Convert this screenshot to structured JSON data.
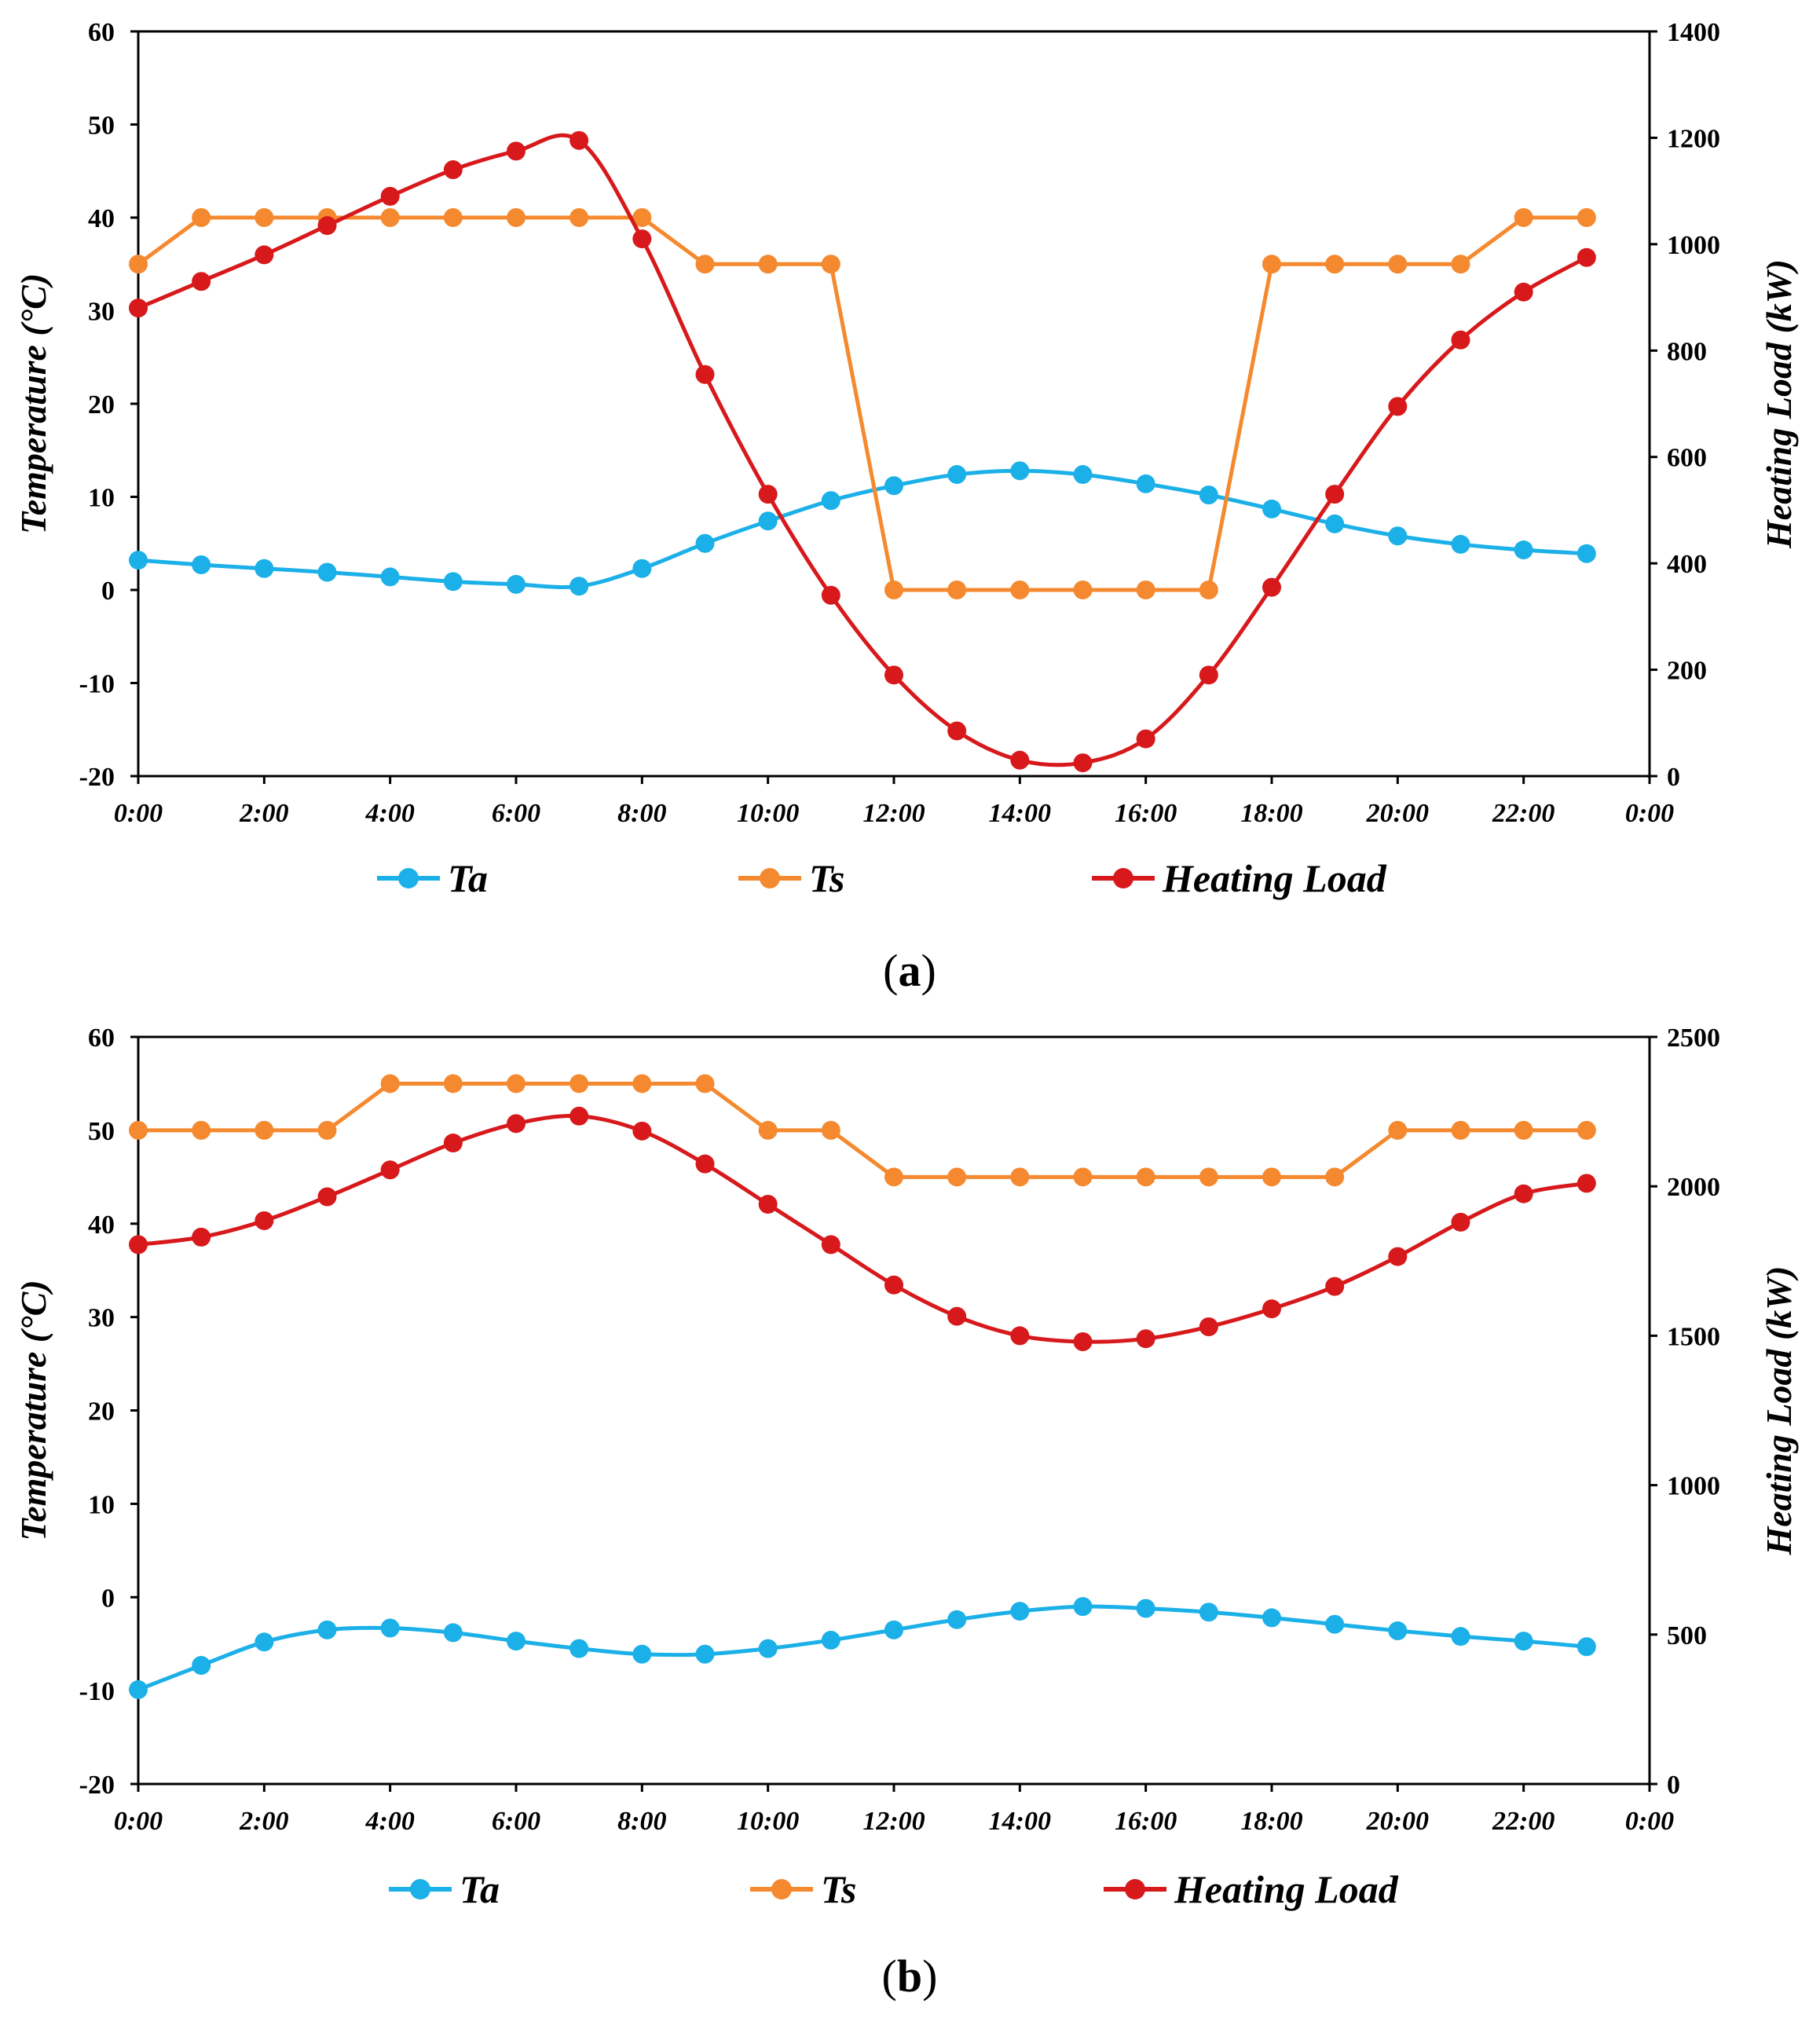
{
  "chart_data": [
    {
      "type": "line",
      "panel": "a",
      "caption_letter": "a",
      "x_tick_labels": [
        "0:00",
        "2:00",
        "4:00",
        "6:00",
        "8:00",
        "10:00",
        "12:00",
        "14:00",
        "16:00",
        "18:00",
        "20:00",
        "22:00",
        "0:00"
      ],
      "x_hours": [
        0,
        1,
        2,
        3,
        4,
        5,
        6,
        7,
        8,
        9,
        10,
        11,
        12,
        13,
        14,
        15,
        16,
        17,
        18,
        19,
        20,
        21,
        22,
        23
      ],
      "xlim": [
        0,
        24
      ],
      "y_left": {
        "label": "Temperature (°C)",
        "ylim": [
          -20,
          60
        ],
        "ticks": [
          -20,
          -10,
          0,
          10,
          20,
          30,
          40,
          50,
          60
        ]
      },
      "y_right": {
        "label": "Heating Load (kW)",
        "ylim": [
          0,
          1400
        ],
        "ticks": [
          0,
          200,
          400,
          600,
          800,
          1000,
          1200,
          1400
        ]
      },
      "series": [
        {
          "name": "Ta",
          "axis": "left",
          "color": "#1CB0E8",
          "smooth": true,
          "values": [
            3.2,
            2.7,
            2.3,
            1.9,
            1.4,
            0.9,
            0.6,
            0.4,
            2.3,
            5.0,
            7.4,
            9.6,
            11.2,
            12.4,
            12.8,
            12.4,
            11.4,
            10.2,
            8.7,
            7.1,
            5.8,
            4.9,
            4.3,
            3.9
          ]
        },
        {
          "name": "Ts",
          "axis": "left",
          "color": "#F5892F",
          "smooth": false,
          "values": [
            35,
            40,
            40,
            40,
            40,
            40,
            40,
            40,
            40,
            35,
            35,
            35,
            0,
            0,
            0,
            0,
            0,
            0,
            35,
            35,
            35,
            35,
            40,
            40
          ]
        },
        {
          "name": "Heating Load",
          "axis": "right",
          "color": "#D7191C",
          "smooth": true,
          "values": [
            880,
            930,
            980,
            1035,
            1090,
            1140,
            1175,
            1195,
            1010,
            755,
            530,
            340,
            190,
            85,
            30,
            25,
            70,
            190,
            355,
            530,
            695,
            820,
            910,
            975
          ]
        }
      ]
    },
    {
      "type": "line",
      "panel": "b",
      "caption_letter": "b",
      "x_tick_labels": [
        "0:00",
        "2:00",
        "4:00",
        "6:00",
        "8:00",
        "10:00",
        "12:00",
        "14:00",
        "16:00",
        "18:00",
        "20:00",
        "22:00",
        "0:00"
      ],
      "x_hours": [
        0,
        1,
        2,
        3,
        4,
        5,
        6,
        7,
        8,
        9,
        10,
        11,
        12,
        13,
        14,
        15,
        16,
        17,
        18,
        19,
        20,
        21,
        22,
        23
      ],
      "xlim": [
        0,
        24
      ],
      "y_left": {
        "label": "Temperature (°C)",
        "ylim": [
          -20,
          60
        ],
        "ticks": [
          -20,
          -10,
          0,
          10,
          20,
          30,
          40,
          50,
          60
        ]
      },
      "y_right": {
        "label": "Heating Load (kW)",
        "ylim": [
          0,
          2500
        ],
        "ticks": [
          0,
          500,
          1000,
          1500,
          2000,
          2500
        ]
      },
      "series": [
        {
          "name": "Ta",
          "axis": "left",
          "color": "#1CB0E8",
          "smooth": true,
          "values": [
            -9.9,
            -7.3,
            -4.8,
            -3.5,
            -3.3,
            -3.8,
            -4.7,
            -5.5,
            -6.1,
            -6.1,
            -5.5,
            -4.6,
            -3.5,
            -2.4,
            -1.5,
            -1.0,
            -1.2,
            -1.6,
            -2.2,
            -2.9,
            -3.6,
            -4.2,
            -4.7,
            -5.3
          ]
        },
        {
          "name": "Ts",
          "axis": "left",
          "color": "#F5892F",
          "smooth": false,
          "values": [
            50,
            50,
            50,
            50,
            55,
            55,
            55,
            55,
            55,
            55,
            50,
            50,
            45,
            45,
            45,
            45,
            45,
            45,
            45,
            45,
            50,
            50,
            50,
            50
          ]
        },
        {
          "name": "Heating Load",
          "axis": "right",
          "color": "#D7191C",
          "smooth": true,
          "values": [
            1805,
            1830,
            1885,
            1965,
            2055,
            2145,
            2210,
            2235,
            2185,
            2075,
            1940,
            1805,
            1670,
            1565,
            1500,
            1480,
            1490,
            1530,
            1590,
            1665,
            1765,
            1880,
            1975,
            2010
          ]
        }
      ]
    }
  ]
}
